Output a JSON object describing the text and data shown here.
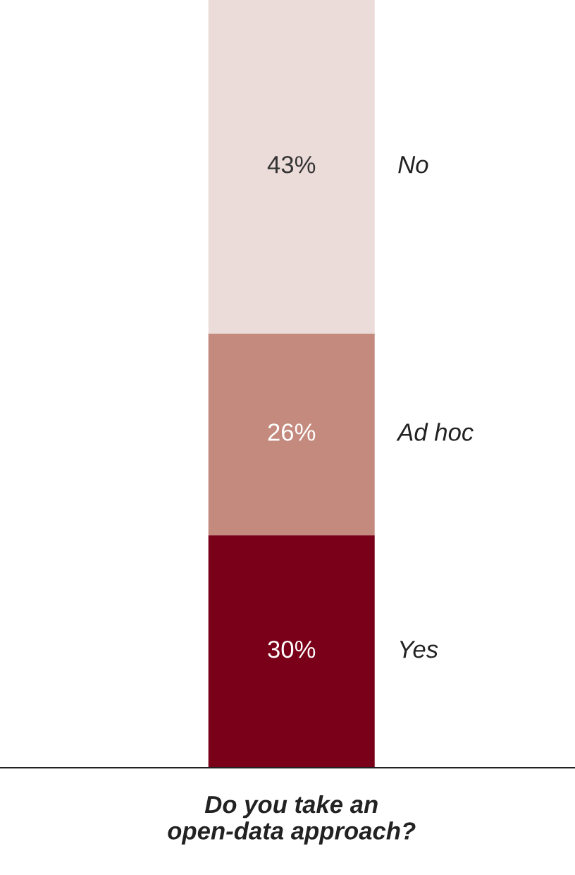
{
  "chart_data": {
    "type": "bar",
    "stacked": true,
    "categories": [
      "Do you take an\nopen-data approach?"
    ],
    "legend": false,
    "series": [
      {
        "name": "Yes",
        "color": "#7a0019",
        "values": [
          30
        ],
        "value_labels": [
          "30%"
        ]
      },
      {
        "name": "Ad hoc",
        "color": "#c48a7e",
        "values": [
          26
        ],
        "value_labels": [
          "26%"
        ]
      },
      {
        "name": "No",
        "color": "#ecdcd9",
        "values": [
          43
        ],
        "value_labels": [
          "43%"
        ]
      }
    ]
  }
}
